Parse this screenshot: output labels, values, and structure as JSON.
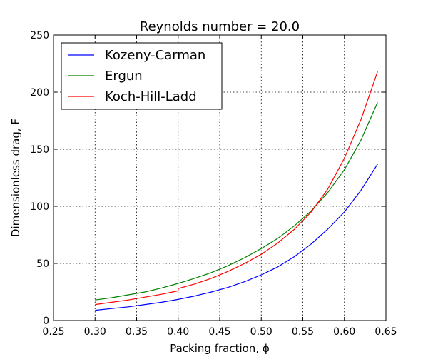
{
  "chart_data": {
    "type": "line",
    "title": "Reynolds number = 20.0",
    "xlabel": "Packing fraction, ϕ",
    "ylabel": "Dimensionless drag, F",
    "xlim": [
      0.25,
      0.65
    ],
    "ylim": [
      0,
      250
    ],
    "xticks": [
      "0.25",
      "0.30",
      "0.35",
      "0.40",
      "0.45",
      "0.50",
      "0.55",
      "0.60",
      "0.65"
    ],
    "yticks": [
      "0",
      "50",
      "100",
      "150",
      "200",
      "250"
    ],
    "grid": true,
    "legend_position": "top-left",
    "series": [
      {
        "name": "Kozeny-Carman",
        "color": "#0000ff",
        "x": [
          0.3,
          0.32,
          0.34,
          0.36,
          0.38,
          0.4,
          0.42,
          0.44,
          0.46,
          0.48,
          0.5,
          0.52,
          0.54,
          0.56,
          0.58,
          0.6,
          0.62,
          0.64
        ],
        "y": [
          9,
          10.5,
          12,
          14,
          16,
          18.5,
          21.5,
          25,
          29,
          34,
          40,
          47,
          56,
          67,
          80,
          95,
          114,
          137
        ]
      },
      {
        "name": "Ergun",
        "color": "#008000",
        "x": [
          0.3,
          0.32,
          0.34,
          0.36,
          0.38,
          0.4,
          0.42,
          0.44,
          0.46,
          0.48,
          0.5,
          0.52,
          0.54,
          0.56,
          0.58,
          0.6,
          0.62,
          0.64
        ],
        "y": [
          18,
          20,
          22.5,
          25,
          28.5,
          32.5,
          37,
          42,
          48,
          55,
          63,
          72,
          83,
          96,
          112,
          132,
          158,
          191
        ]
      },
      {
        "name": "Koch-Hill-Ladd",
        "color": "#ff0000",
        "x": [
          0.3,
          0.32,
          0.34,
          0.36,
          0.38,
          0.4,
          0.4,
          0.42,
          0.44,
          0.46,
          0.48,
          0.5,
          0.52,
          0.54,
          0.56,
          0.58,
          0.6,
          0.62,
          0.64
        ],
        "y": [
          14,
          16,
          18,
          20.5,
          23,
          26,
          28,
          32,
          37,
          43,
          50,
          58,
          68,
          80,
          95,
          115,
          142,
          176,
          218
        ]
      }
    ]
  }
}
